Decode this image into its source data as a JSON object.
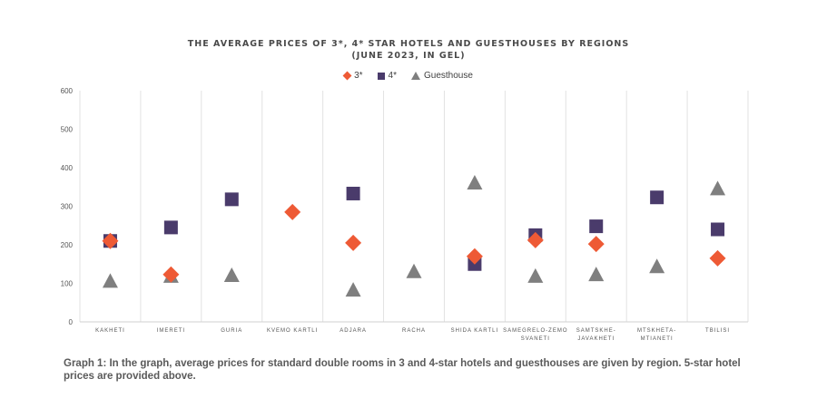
{
  "chart_data": {
    "type": "scatter",
    "title_line1": "THE AVERAGE PRICES OF 3*, 4* STAR HOTELS AND GUESTHOUSES BY REGIONS",
    "title_line2": "(JUNE 2023, IN GEL)",
    "categories": [
      [
        "KAKHETI"
      ],
      [
        "IMERETI"
      ],
      [
        "GURIA"
      ],
      [
        "KVEMO KARTLI"
      ],
      [
        "ADJARA"
      ],
      [
        "RACHA"
      ],
      [
        "SHIDA KARTLI"
      ],
      [
        "SAMEGRELO-ZEMO",
        "SVANETI"
      ],
      [
        "SAMTSKHE-",
        "JAVAKHETI"
      ],
      [
        "MTSKHETA-",
        "MTIANETI"
      ],
      [
        "TBILISI"
      ]
    ],
    "series": [
      {
        "name": "3*",
        "marker": "diamond",
        "color": "#ee5a35",
        "values": [
          210,
          123,
          null,
          285,
          205,
          null,
          170,
          212,
          202,
          null,
          165
        ]
      },
      {
        "name": "4*",
        "marker": "square",
        "color": "#4a3b6b",
        "values": [
          210,
          245,
          318,
          null,
          333,
          null,
          150,
          225,
          248,
          323,
          240
        ]
      },
      {
        "name": "Guesthouse",
        "marker": "triangle",
        "color": "#7f7f7f",
        "values": [
          105,
          118,
          120,
          null,
          82,
          130,
          360,
          118,
          122,
          143,
          345
        ]
      }
    ],
    "ylim": [
      0,
      600
    ],
    "yticks": [
      0,
      100,
      200,
      300,
      400,
      500,
      600
    ],
    "grid": "vertical category separators",
    "legend_placement": "top-center"
  },
  "caption": "Graph 1: In the graph, average prices for standard double rooms in 3 and 4-star hotels and guesthouses are given by region. 5-star hotel prices are provided above."
}
